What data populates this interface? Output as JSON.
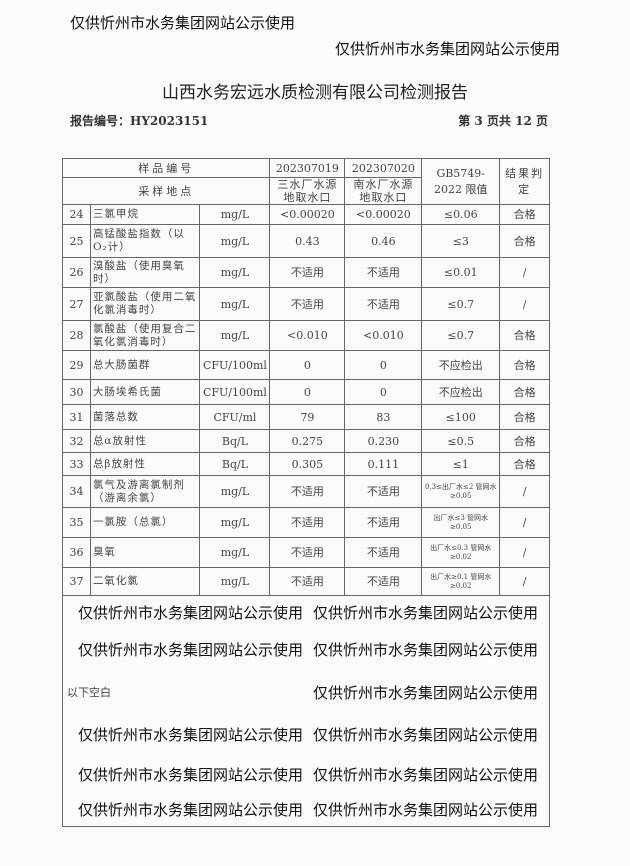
{
  "title": "山西水务宏远水质检测有限公司检测报告",
  "report_no": "报告编号：HY2023151",
  "page_info": "第 3 页共 12 页",
  "header": {
    "sample_no": "样品编号",
    "sample_loc": "采样地点",
    "s1_no": "202307019",
    "s2_no": "202307020",
    "s1_loc": "三水厂水源地取水口",
    "s2_loc": "南水厂水源地取水口",
    "limit": "GB5749-2022 限值",
    "result": "结果判定"
  },
  "rows": [
    {
      "n": "24",
      "name": "三氯甲烷",
      "unit": "mg/L",
      "v1": "<0.00020",
      "v2": "<0.00020",
      "limit": "≤0.06",
      "res": "合格"
    },
    {
      "n": "25",
      "name": "高锰酸盐指数（以O₂计）",
      "unit": "mg/L",
      "v1": "0.43",
      "v2": "0.46",
      "limit": "≤3",
      "res": "合格"
    },
    {
      "n": "26",
      "name": "溴酸盐（使用臭氧时）",
      "unit": "mg/L",
      "v1": "不适用",
      "v2": "不适用",
      "limit": "≤0.01",
      "res": "/"
    },
    {
      "n": "27",
      "name": "亚氯酸盐（使用二氧化氯消毒时）",
      "unit": "mg/L",
      "v1": "不适用",
      "v2": "不适用",
      "limit": "≤0.7",
      "res": "/"
    },
    {
      "n": "28",
      "name": "氯酸盐（使用复合二氧化氯消毒时）",
      "unit": "mg/L",
      "v1": "<0.010",
      "v2": "<0.010",
      "limit": "≤0.7",
      "res": "合格"
    },
    {
      "n": "29",
      "name": "总大肠菌群",
      "unit": "CFU/100ml",
      "v1": "0",
      "v2": "0",
      "limit": "不应检出",
      "res": "合格"
    },
    {
      "n": "30",
      "name": "大肠埃希氏菌",
      "unit": "CFU/100ml",
      "v1": "0",
      "v2": "0",
      "limit": "不应检出",
      "res": "合格"
    },
    {
      "n": "31",
      "name": "菌落总数",
      "unit": "CFU/ml",
      "v1": "79",
      "v2": "83",
      "limit": "≤100",
      "res": "合格"
    },
    {
      "n": "32",
      "name": "总α放射性",
      "unit": "Bq/L",
      "v1": "0.275",
      "v2": "0.230",
      "limit": "≤0.5",
      "res": "合格"
    },
    {
      "n": "33",
      "name": "总β放射性",
      "unit": "Bq/L",
      "v1": "0.305",
      "v2": "0.111",
      "limit": "≤1",
      "res": "合格"
    },
    {
      "n": "34",
      "name": "氯气及游离氯制剂（游离余氯）",
      "unit": "mg/L",
      "v1": "不适用",
      "v2": "不适用",
      "limit": "0.3≤出厂水≤2 管网水≥0.05",
      "res": "/",
      "small": true
    },
    {
      "n": "35",
      "name": "一氯胺（总氯）",
      "unit": "mg/L",
      "v1": "不适用",
      "v2": "不适用",
      "limit": "出厂水≤3 管网水≥0.05",
      "res": "/",
      "small": true
    },
    {
      "n": "36",
      "name": "臭氧",
      "unit": "mg/L",
      "v1": "不适用",
      "v2": "不适用",
      "limit": "出厂水≤0.3 管网水≥0.02",
      "res": "/",
      "small": true
    },
    {
      "n": "37",
      "name": "二氧化氯",
      "unit": "mg/L",
      "v1": "不适用",
      "v2": "不适用",
      "limit": "出厂水≥0.1 管网水≥0.02",
      "res": "/",
      "small": true
    }
  ],
  "blank_note": "以下空白",
  "watermark": "仅供忻州市水务集团网站公示使用"
}
